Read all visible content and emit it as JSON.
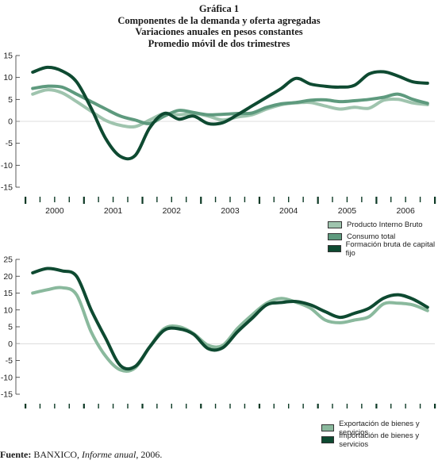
{
  "titles": [
    "Gráfica 1",
    "Componentes de la demanda y oferta agregadas",
    "Variaciones anuales en pesos constantes",
    "Promedio móvil de dos trimestres"
  ],
  "source": {
    "label": "Fuente:",
    "institution": "BANXICO,",
    "publication": "Informe anual",
    "year": ", 2006."
  },
  "chart_data": [
    {
      "type": "line",
      "title": "",
      "xlabel": "",
      "ylabel": "",
      "ylim": [
        -15,
        15
      ],
      "yticks": [
        "15",
        "10",
        "5",
        "0",
        "-5",
        "-10",
        "-15"
      ],
      "x_labels": [
        "2000",
        "2001",
        "2002",
        "2003",
        "2004",
        "2005",
        "2006"
      ],
      "x": [
        "2000-I",
        "2000-II",
        "2000-III",
        "2000-IV",
        "2001-I",
        "2001-II",
        "2001-III",
        "2001-IV",
        "2002-I",
        "2002-II",
        "2002-III",
        "2002-IV",
        "2003-I",
        "2003-II",
        "2003-III",
        "2003-IV",
        "2004-I",
        "2004-II",
        "2004-III",
        "2004-IV",
        "2005-I",
        "2005-II",
        "2005-III",
        "2005-IV",
        "2006-I",
        "2006-II",
        "2006-III",
        "2006-IV"
      ],
      "legend_position": "bottom-right",
      "series": [
        {
          "name": "Producto Interno Bruto",
          "color": "#9fc4ae",
          "values": [
            6.2,
            7.2,
            6.5,
            4.5,
            2.3,
            0.2,
            -0.9,
            -1.2,
            0.3,
            1.8,
            1.5,
            1.8,
            1.2,
            0.3,
            1.0,
            1.5,
            2.8,
            3.8,
            4.2,
            4.3,
            3.5,
            2.8,
            3.2,
            3.0,
            4.8,
            5.0,
            4.2,
            3.8
          ]
        },
        {
          "name": "Consumo total",
          "color": "#5e9a7e",
          "values": [
            7.5,
            8.0,
            7.8,
            6.2,
            4.5,
            2.8,
            1.2,
            0.3,
            -0.5,
            1.2,
            2.5,
            2.0,
            1.5,
            1.6,
            1.8,
            1.9,
            3.2,
            4.0,
            4.3,
            4.8,
            4.9,
            4.5,
            4.7,
            5.0,
            5.5,
            6.2,
            5.0,
            4.1
          ]
        },
        {
          "name": "Formación bruta de capital fijo",
          "color": "#0e4a31",
          "values": [
            11.2,
            12.3,
            11.5,
            9.0,
            3.0,
            -4.0,
            -8.0,
            -7.8,
            -1.5,
            1.8,
            0.5,
            1.2,
            -0.5,
            -0.3,
            1.5,
            3.5,
            5.5,
            7.5,
            9.8,
            8.5,
            8.0,
            7.8,
            8.2,
            10.8,
            11.3,
            10.3,
            9.0,
            8.7
          ]
        }
      ]
    },
    {
      "type": "line",
      "title": "",
      "xlabel": "",
      "ylabel": "",
      "ylim": [
        -15,
        25
      ],
      "yticks": [
        "25",
        "20",
        "15",
        "10",
        "5",
        "0",
        "-5",
        "-10",
        "-15"
      ],
      "x_labels": [
        "2000",
        "2001",
        "2002",
        "2003",
        "2004",
        "2005",
        "2006"
      ],
      "x": [
        "2000-I",
        "2000-II",
        "2000-III",
        "2000-IV",
        "2001-I",
        "2001-II",
        "2001-III",
        "2001-IV",
        "2002-I",
        "2002-II",
        "2002-III",
        "2002-IV",
        "2003-I",
        "2003-II",
        "2003-III",
        "2003-IV",
        "2004-I",
        "2004-II",
        "2004-III",
        "2004-IV",
        "2005-I",
        "2005-II",
        "2005-III",
        "2005-IV",
        "2006-I",
        "2006-II",
        "2006-III",
        "2006-IV"
      ],
      "legend_position": "bottom-right",
      "series": [
        {
          "name": "Exportación de bienes y servicios",
          "color": "#8ab99d",
          "values": [
            15.0,
            16.0,
            16.6,
            14.5,
            3.5,
            -3.8,
            -7.8,
            -7.2,
            -1.0,
            4.5,
            5.0,
            3.0,
            -0.5,
            -0.5,
            4.5,
            8.5,
            12.0,
            13.4,
            12.3,
            10.5,
            7.0,
            6.2,
            7.0,
            8.0,
            11.8,
            12.0,
            11.5,
            9.8
          ]
        },
        {
          "name": "Importación de bienes y servicios",
          "color": "#0e4a31",
          "values": [
            21.0,
            22.3,
            21.6,
            20.0,
            10.0,
            1.5,
            -6.5,
            -6.8,
            -1.0,
            4.0,
            4.4,
            2.8,
            -1.5,
            -1.2,
            3.5,
            7.5,
            11.5,
            12.2,
            12.5,
            11.5,
            9.5,
            7.8,
            9.0,
            10.5,
            13.5,
            14.5,
            13.2,
            10.8
          ]
        }
      ]
    }
  ]
}
